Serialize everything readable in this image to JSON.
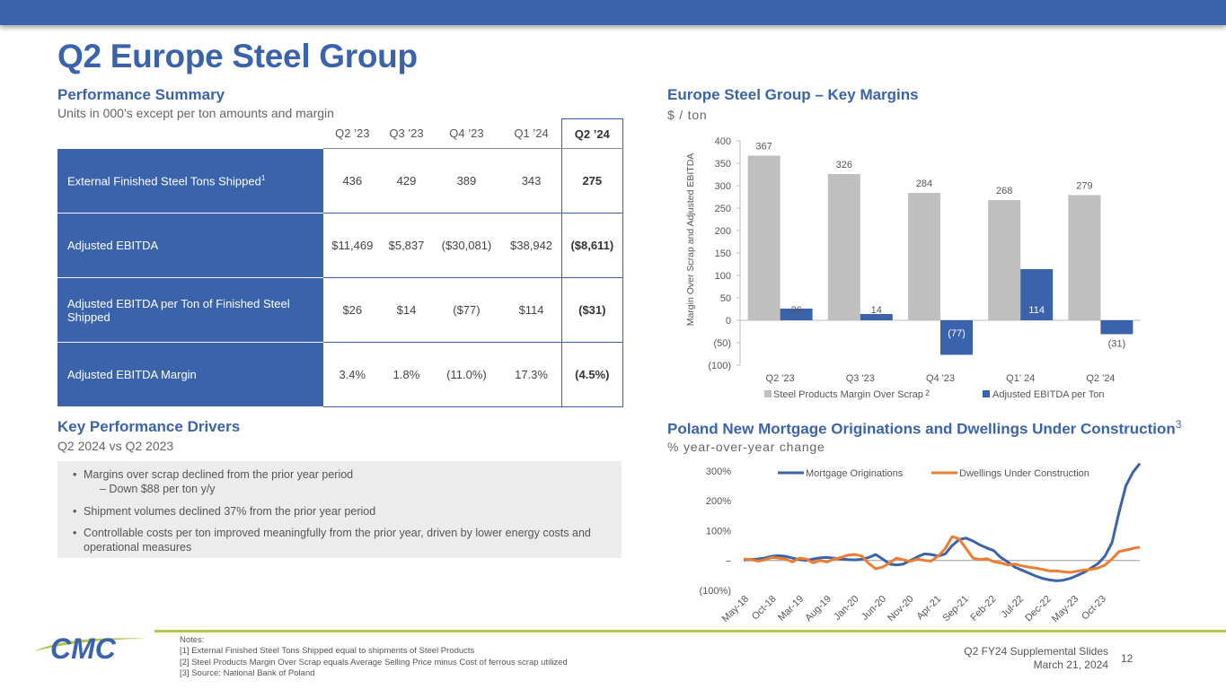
{
  "page": {
    "title": "Q2 Europe Steel Group"
  },
  "colors": {
    "brand_blue": "#3b63ab",
    "bar_gray": "#bfbfbf",
    "bar_blue": "#3b63ab",
    "line_orange": "#ed7d31",
    "accent_green": "#b5c74f"
  },
  "performance": {
    "title": "Performance Summary",
    "subtitle": "Units in 000’s except per ton amounts and margin",
    "headers": [
      "Q2 ’23",
      "Q3 ’23",
      "Q4 ’23",
      "Q1 ’24",
      "Q2 ’24"
    ],
    "rows": [
      {
        "label": "External Finished Steel Tons Shipped",
        "sup": "1",
        "values": [
          "436",
          "429",
          "389",
          "343",
          "275"
        ]
      },
      {
        "label": "Adjusted EBITDA",
        "values": [
          "$11,469",
          "$5,837",
          "($30,081)",
          "$38,942",
          "($8,611)"
        ]
      },
      {
        "label": "Adjusted EBITDA per Ton of Finished Steel Shipped",
        "values": [
          "$26",
          "$14",
          "($77)",
          "$114",
          "($31)"
        ]
      },
      {
        "label": "Adjusted EBITDA Margin",
        "values": [
          "3.4%",
          "1.8%",
          "(11.0%)",
          "17.3%",
          "(4.5%)"
        ]
      }
    ]
  },
  "drivers": {
    "title": "Key Performance Drivers",
    "subtitle": "Q2 2024 vs Q2 2023",
    "b1": "Margins over scrap declined from the prior year period",
    "b1_sub": "– Down $88 per ton y/y",
    "b2": "Shipment volumes declined 37% from the prior year period",
    "b3": "Controllable costs per ton improved meaningfully from the prior year, driven by lower energy costs and operational measures"
  },
  "margins_chart": {
    "title": "Europe Steel Group – Key Margins",
    "subtitle": "$ / ton"
  },
  "mortgage_chart": {
    "title": "Poland New Mortgage Originations and Dwellings Under Construction",
    "title_sup": "3",
    "subtitle": "% year-over-year change"
  },
  "chart_data": [
    {
      "type": "bar",
      "title": "Europe Steel Group – Key Margins",
      "ylabel": "Margin Over Scrap and Adjusted EBITDA",
      "categories": [
        "Q2 '23",
        "Q3 '23",
        "Q4 '23",
        "Q1' 24",
        "Q2 '24"
      ],
      "series": [
        {
          "name": "Steel Products Margin Over Scrap",
          "name_sup": "2",
          "values": [
            367,
            326,
            284,
            268,
            279
          ],
          "labels": [
            "367",
            "326",
            "284",
            "268",
            "279"
          ]
        },
        {
          "name": "Adjusted EBITDA per Ton",
          "values": [
            26,
            14,
            -77,
            114,
            -31
          ],
          "labels": [
            "26",
            "14",
            "(77)",
            "114",
            "(31)"
          ]
        }
      ],
      "ylim": [
        -100,
        400
      ],
      "yticks": [
        -100,
        -50,
        0,
        50,
        100,
        150,
        200,
        250,
        300,
        350,
        400
      ],
      "ytick_labels": [
        "(100)",
        "(50)",
        "0",
        "50",
        "100",
        "150",
        "200",
        "250",
        "300",
        "350",
        "400"
      ],
      "legend": "bottom"
    },
    {
      "type": "line",
      "title": "Poland New Mortgage Originations and Dwellings Under Construction",
      "ylabel": "% year-over-year change",
      "x_tick_labels": [
        "May-18",
        "Oct-18",
        "Mar-19",
        "Aug-19",
        "Jan-20",
        "Jun-20",
        "Nov-20",
        "Apr-21",
        "Sep-21",
        "Feb-22",
        "Jul-22",
        "Dec-22",
        "May-23",
        "Oct-23"
      ],
      "ylim": [
        -100,
        330
      ],
      "yticks": [
        -100,
        0,
        100,
        200,
        300
      ],
      "ytick_labels": [
        "(100%)",
        "–",
        "100%",
        "200%",
        "300%"
      ],
      "series": [
        {
          "name": "Mortgage Originations",
          "values": [
            2,
            3,
            5,
            8,
            14,
            16,
            14,
            8,
            3,
            0,
            5,
            9,
            10,
            8,
            5,
            3,
            2,
            4,
            10,
            20,
            5,
            -12,
            -15,
            -12,
            0,
            12,
            22,
            20,
            15,
            22,
            50,
            70,
            75,
            65,
            52,
            42,
            33,
            10,
            -5,
            -22,
            -32,
            -42,
            -52,
            -60,
            -65,
            -68,
            -66,
            -60,
            -50,
            -40,
            -25,
            -10,
            15,
            60,
            160,
            250,
            295,
            325
          ]
        },
        {
          "name": "Dwellings Under Construction",
          "values": [
            5,
            3,
            -2,
            2,
            10,
            8,
            5,
            -5,
            8,
            5,
            -8,
            0,
            -5,
            5,
            10,
            18,
            20,
            15,
            -10,
            -28,
            -22,
            -8,
            8,
            2,
            -3,
            5,
            0,
            -2,
            15,
            40,
            80,
            72,
            40,
            8,
            3,
            6,
            -4,
            -8,
            -15,
            -12,
            -18,
            -22,
            -25,
            -30,
            -35,
            -35,
            -38,
            -40,
            -36,
            -32,
            -30,
            -25,
            -15,
            5,
            30,
            35,
            40,
            45
          ]
        }
      ],
      "legend": "top"
    }
  ],
  "footer": {
    "notes_title": "Notes:",
    "note1": "[1]  External Finished Steel Tons Shipped equal to shipments of Steel Products",
    "note2": "[2]  Steel Products Margin Over Scrap equals Average Selling Price minus Cost of ferrous scrap utilized",
    "note3": "[3]  Source: National Bank of Poland",
    "slides": "Q2 FY24 Supplemental Slides",
    "date": "March 21, 2024",
    "page_number": "12",
    "logo_text": "CMC"
  }
}
